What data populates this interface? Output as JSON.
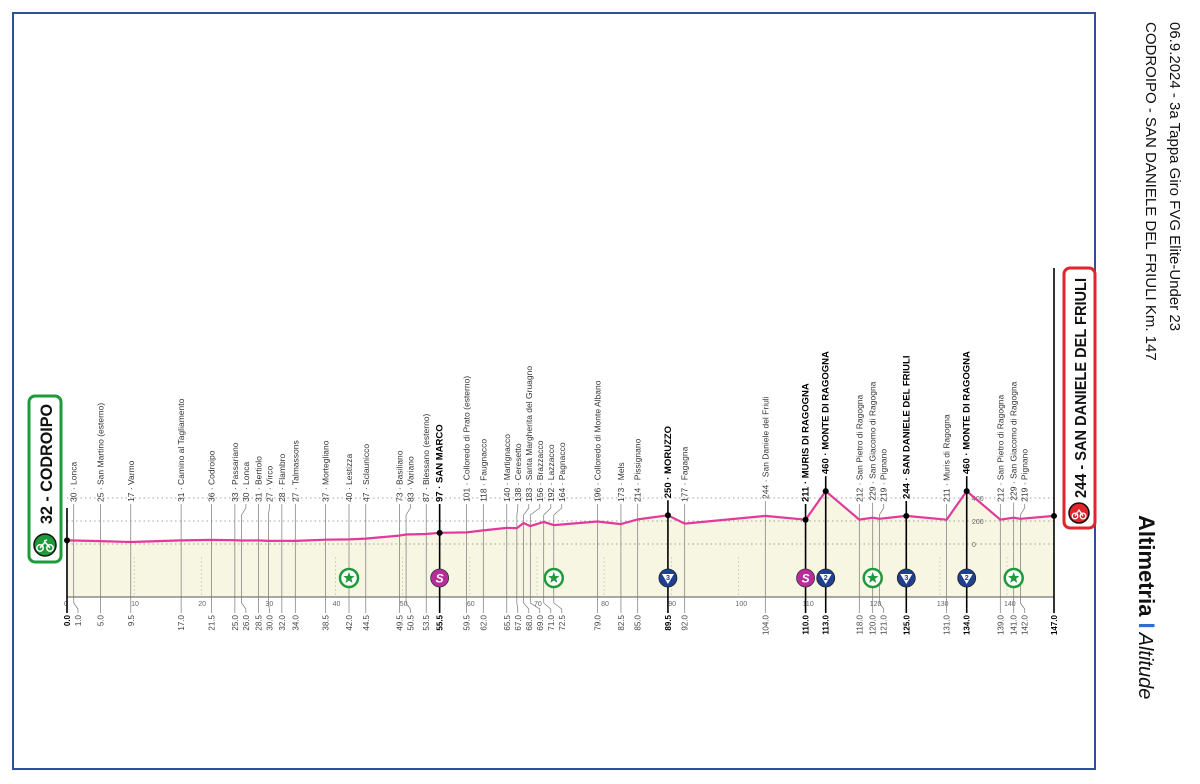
{
  "header": {
    "title_line1": "06.9.2024 - 3a Tappa Giro FVG Elite-Under 23",
    "title_line2": "CODROIPO - SAN DANIELE DEL FRIULI Km. 147",
    "altimetria": "Altimetria",
    "separator": "I",
    "altitude": "Altitude"
  },
  "start": {
    "label": "32 - CODROIPO",
    "color": "#1f9a3a"
  },
  "finish": {
    "label": "244 - SAN DANIELE DEL FRIULI",
    "color": "#e0252b"
  },
  "colors": {
    "profile": "#e23a9a",
    "fill": "#f7f6e2",
    "frame": "#2f4e9c",
    "sprint": "#1f9a3a",
    "s_marker": "#b62d9b",
    "gpm": "#1f3f8f"
  },
  "chart_data": {
    "type": "area",
    "title": "Altimetria | Altitude",
    "xlabel": "km",
    "ylabel": "m",
    "xlim": [
      0,
      147
    ],
    "ylim": [
      0,
      460
    ],
    "x_ticks": [
      0,
      10,
      20,
      30,
      40,
      50,
      60,
      70,
      80,
      90,
      100,
      110,
      120,
      130,
      140
    ],
    "y_ticks": [
      "0",
      "200",
      "400"
    ],
    "y_tick_values": [
      0,
      200,
      400
    ],
    "points": [
      {
        "km": 0.0,
        "km_label": "0.0",
        "alt": 32,
        "name": "",
        "bold": true
      },
      {
        "km": 1.0,
        "km_label": "1.0",
        "alt": 30,
        "name": "30 · Lonca"
      },
      {
        "km": 5.0,
        "km_label": "5.0",
        "alt": 25,
        "name": "25 · San Martino (esterno)"
      },
      {
        "km": 9.5,
        "km_label": "9.5",
        "alt": 17,
        "name": "17 · Varmo"
      },
      {
        "km": 17.0,
        "km_label": "17.0",
        "alt": 31,
        "name": "31 · Camino al Tagliamento"
      },
      {
        "km": 21.5,
        "km_label": "21.5",
        "alt": 36,
        "name": "36 · Codroipo"
      },
      {
        "km": 25.0,
        "km_label": "25.0",
        "alt": 33,
        "name": "33 · Passariano"
      },
      {
        "km": 26.0,
        "km_label": "26.0",
        "alt": 30,
        "name": "30 · Lonca"
      },
      {
        "km": 28.5,
        "km_label": "28.5",
        "alt": 31,
        "name": "31 · Bertiolo"
      },
      {
        "km": 30.0,
        "km_label": "30.0",
        "alt": 27,
        "name": "27 · Virco"
      },
      {
        "km": 32.0,
        "km_label": "32.0",
        "alt": 28,
        "name": "28 · Flambro"
      },
      {
        "km": 34.0,
        "km_label": "34.0",
        "alt": 27,
        "name": "27 · Talmassons"
      },
      {
        "km": 38.5,
        "km_label": "38.5",
        "alt": 37,
        "name": "37 · Mortegliano"
      },
      {
        "km": 42.0,
        "km_label": "42.0",
        "alt": 40,
        "name": "40 · Lestizza"
      },
      {
        "km": 44.5,
        "km_label": "44.5",
        "alt": 47,
        "name": "47 · Sclaunicco"
      },
      {
        "km": 49.5,
        "km_label": "49.5",
        "alt": 73,
        "name": "73 · Basiliano"
      },
      {
        "km": 50.5,
        "km_label": "50.5",
        "alt": 83,
        "name": "83 · Variano"
      },
      {
        "km": 53.5,
        "km_label": "53.5",
        "alt": 87,
        "name": "87 · Blessano (esterno)"
      },
      {
        "km": 55.5,
        "km_label": "55.5",
        "alt": 97,
        "name": "97 · SAN MARCO",
        "bold": true
      },
      {
        "km": 59.5,
        "km_label": "59.5",
        "alt": 101,
        "name": "101 · Colloredo di Prato (esterno)"
      },
      {
        "km": 62.0,
        "km_label": "62.0",
        "alt": 118,
        "name": "118 · Faugnacco"
      },
      {
        "km": 65.5,
        "km_label": "65.5",
        "alt": 140,
        "name": "140 · Martignacco"
      },
      {
        "km": 67.0,
        "km_label": "67.0",
        "alt": 138,
        "name": "138 · Ceresetto"
      },
      {
        "km": 68.0,
        "km_label": "68.0",
        "alt": 183,
        "name": "183 · Santa Margherita del Gruagno"
      },
      {
        "km": 69.0,
        "km_label": "69.0",
        "alt": 156,
        "name": "156 · Brazzacco"
      },
      {
        "km": 71.0,
        "km_label": "71.0",
        "alt": 192,
        "name": "192 · Lazzacco"
      },
      {
        "km": 72.5,
        "km_label": "72.5",
        "alt": 164,
        "name": "164 · Pagnacco"
      },
      {
        "km": 79.0,
        "km_label": "79.0",
        "alt": 196,
        "name": "196 · Colloredo di Monte Albano"
      },
      {
        "km": 82.5,
        "km_label": "82.5",
        "alt": 173,
        "name": "173 · Mels"
      },
      {
        "km": 85.0,
        "km_label": "85.0",
        "alt": 214,
        "name": "214 · Pissignano"
      },
      {
        "km": 89.5,
        "km_label": "89.5",
        "alt": 250,
        "name": "250 · MORUZZO",
        "bold": true
      },
      {
        "km": 92.0,
        "km_label": "92.0",
        "alt": 177,
        "name": "177 · Fagagna"
      },
      {
        "km": 104.0,
        "km_label": "104.0",
        "alt": 244,
        "name": "244 · San Daniele del Friuli"
      },
      {
        "km": 110.0,
        "km_label": "110.0",
        "alt": 211,
        "name": "211 · MURIS DI RAGOGNA",
        "bold": true
      },
      {
        "km": 113.0,
        "km_label": "113.0",
        "alt": 460,
        "name": "460 · MONTE DI RAGOGNA",
        "bold": true
      },
      {
        "km": 118.0,
        "km_label": "118.0",
        "alt": 212,
        "name": "212 · San Pietro di Ragogna"
      },
      {
        "km": 120.0,
        "km_label": "120.0",
        "alt": 229,
        "name": "229 · San Giacomo di Ragogna"
      },
      {
        "km": 121.0,
        "km_label": "121.0",
        "alt": 219,
        "name": "219 · Pignano"
      },
      {
        "km": 125.0,
        "km_label": "125.0",
        "alt": 244,
        "name": "244 · SAN DANIELE DEL FRIULI",
        "bold": true
      },
      {
        "km": 131.0,
        "km_label": "131.0",
        "alt": 211,
        "name": "211 · Muris di Ragogna"
      },
      {
        "km": 134.0,
        "km_label": "134.0",
        "alt": 460,
        "name": "460 · MONTE DI RAGOGNA",
        "bold": true
      },
      {
        "km": 139.0,
        "km_label": "139.0",
        "alt": 212,
        "name": "212 · San Pietro di Ragogna"
      },
      {
        "km": 141.0,
        "km_label": "141.0",
        "alt": 229,
        "name": "229 · San Giacomo di Ragogna"
      },
      {
        "km": 142.0,
        "km_label": "142.0",
        "alt": 219,
        "name": "219 · Pignano"
      },
      {
        "km": 147.0,
        "km_label": "147.0",
        "alt": 244,
        "name": "",
        "bold": true
      }
    ],
    "markers": [
      {
        "km": 42.0,
        "type": "sprint",
        "text": ""
      },
      {
        "km": 55.5,
        "type": "s",
        "text": "S"
      },
      {
        "km": 72.5,
        "type": "sprint",
        "text": ""
      },
      {
        "km": 89.5,
        "type": "gpm",
        "text": "3"
      },
      {
        "km": 110.0,
        "type": "s",
        "text": "S"
      },
      {
        "km": 113.0,
        "type": "gpm",
        "text": "2"
      },
      {
        "km": 120.0,
        "type": "sprint",
        "text": ""
      },
      {
        "km": 125.0,
        "type": "gpm",
        "text": "3"
      },
      {
        "km": 134.0,
        "type": "gpm",
        "text": "2"
      },
      {
        "km": 141.0,
        "type": "sprint",
        "text": ""
      }
    ]
  }
}
